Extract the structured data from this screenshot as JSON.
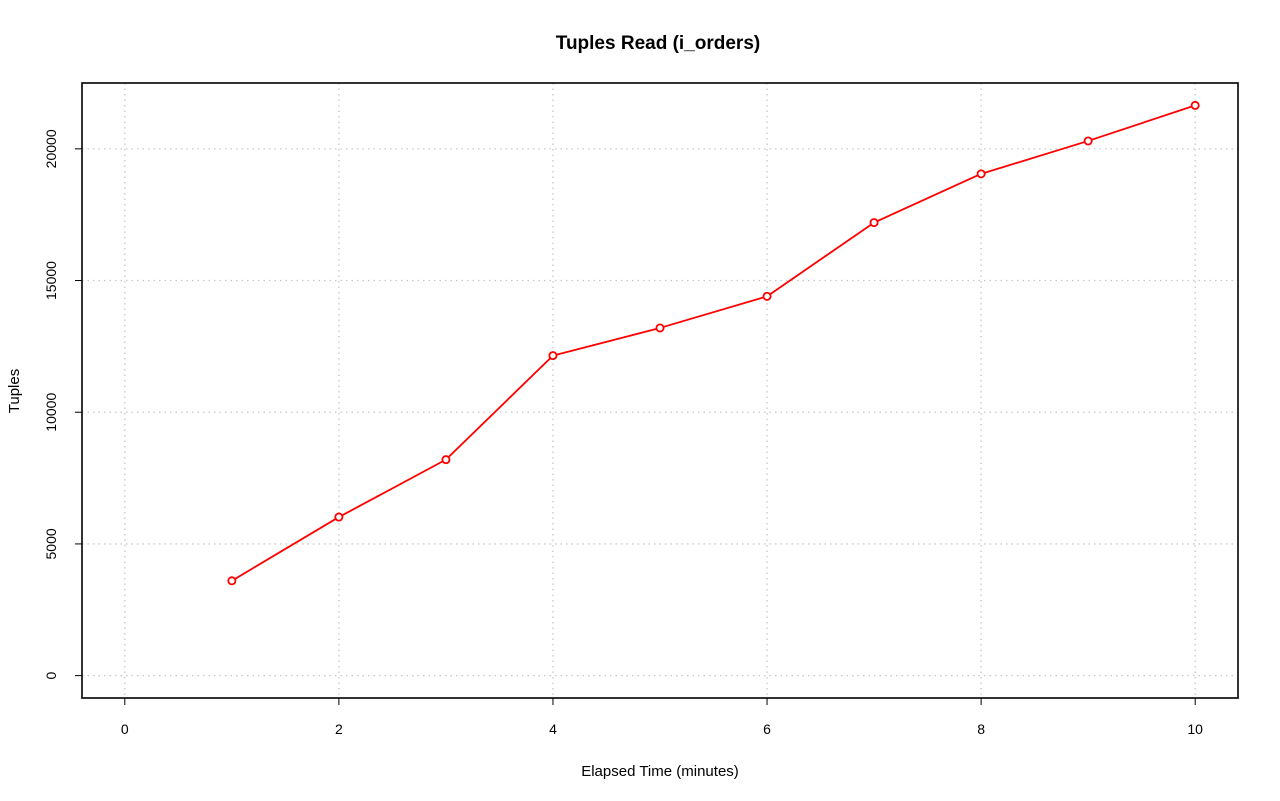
{
  "chart_data": {
    "type": "line",
    "title": "Tuples Read (i_orders)",
    "xlabel": "Elapsed Time (minutes)",
    "ylabel": "Tuples",
    "xlim": [
      -0.4,
      10.4
    ],
    "ylim": [
      -850,
      22500
    ],
    "xticks": [
      0,
      2,
      4,
      6,
      8,
      10
    ],
    "xtick_labels": [
      "0",
      "2",
      "4",
      "6",
      "8",
      "10"
    ],
    "yticks": [
      0,
      5000,
      10000,
      15000,
      20000
    ],
    "ytick_labels": [
      "0",
      "5000",
      "10000",
      "15000",
      "20000"
    ],
    "grid": true,
    "legend": "none",
    "series": [
      {
        "color": "#ff0000",
        "marker": "open-circle",
        "x": [
          1,
          2,
          3,
          4,
          5,
          6,
          7,
          8,
          9,
          10
        ],
        "y": [
          3600,
          6020,
          8200,
          12150,
          13200,
          14400,
          17200,
          19050,
          20300,
          21650
        ]
      }
    ]
  }
}
